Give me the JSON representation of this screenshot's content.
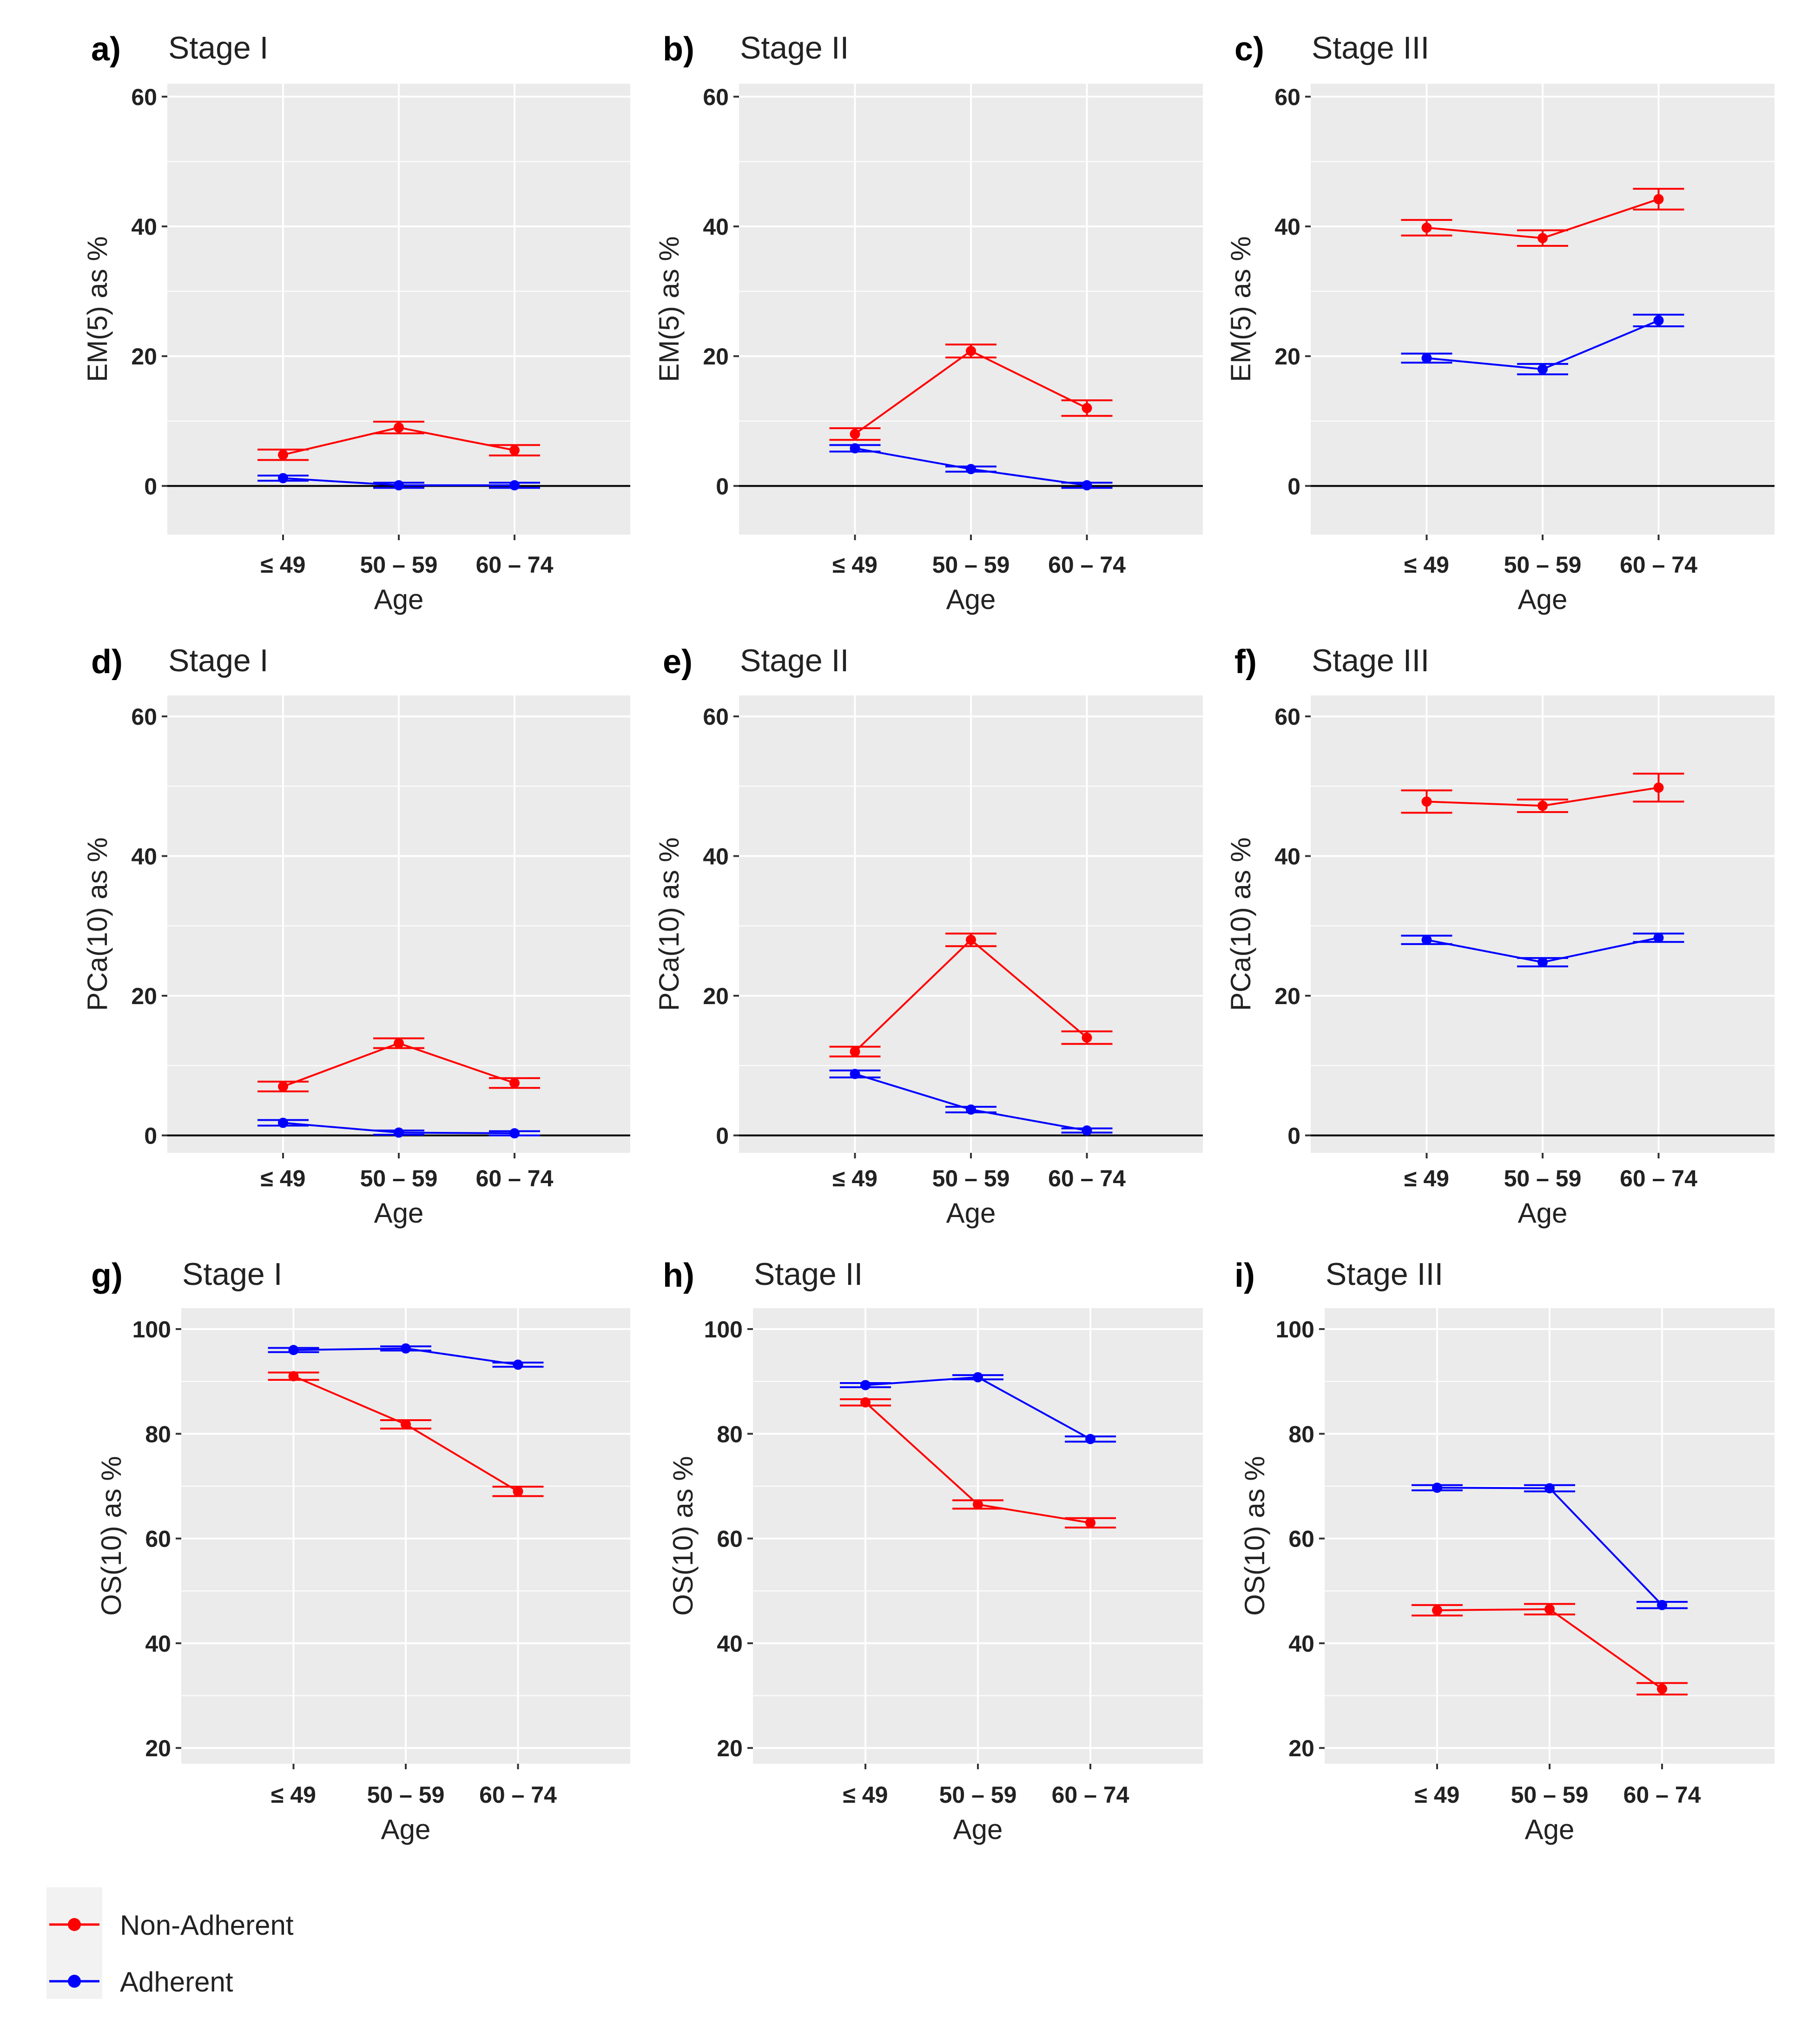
{
  "legend": {
    "items": [
      {
        "label": "Non-Adherent",
        "color": "#ff0000"
      },
      {
        "label": "Adherent",
        "color": "#0000ff"
      }
    ]
  },
  "chart_data": [
    {
      "tag": "a)",
      "title": "Stage I",
      "type": "line",
      "ylabel": "EM(5) as %",
      "xlabel": "Age",
      "categories": [
        "≤ 49",
        "50 – 59",
        "60 – 74"
      ],
      "ylim": [
        -7.5,
        62
      ],
      "yticks": [
        0,
        20,
        40,
        60
      ],
      "zero_line": true,
      "series": [
        {
          "name": "Non-Adherent",
          "color": "#ff0000",
          "values": [
            4.8,
            9,
            5.5
          ],
          "err": [
            0.8,
            0.9,
            0.8
          ]
        },
        {
          "name": "Adherent",
          "color": "#0000ff",
          "values": [
            1.2,
            0.1,
            0.1
          ],
          "err": [
            0.4,
            0.4,
            0.4
          ]
        }
      ]
    },
    {
      "tag": "b)",
      "title": "Stage II",
      "type": "line",
      "ylabel": "EM(5) as %",
      "xlabel": "Age",
      "categories": [
        "≤ 49",
        "50 – 59",
        "60 – 74"
      ],
      "ylim": [
        -7.5,
        62
      ],
      "yticks": [
        0,
        20,
        40,
        60
      ],
      "zero_line": true,
      "series": [
        {
          "name": "Non-Adherent",
          "color": "#ff0000",
          "values": [
            8,
            20.8,
            12
          ],
          "err": [
            0.9,
            1,
            1.2
          ]
        },
        {
          "name": "Adherent",
          "color": "#0000ff",
          "values": [
            5.8,
            2.6,
            0.1
          ],
          "err": [
            0.5,
            0.4,
            0.4
          ]
        }
      ]
    },
    {
      "tag": "c)",
      "title": "Stage III",
      "type": "line",
      "ylabel": "EM(5) as %",
      "xlabel": "Age",
      "categories": [
        "≤ 49",
        "50 – 59",
        "60 – 74"
      ],
      "ylim": [
        -7.5,
        62
      ],
      "yticks": [
        0,
        20,
        40,
        60
      ],
      "zero_line": true,
      "series": [
        {
          "name": "Non-Adherent",
          "color": "#ff0000",
          "values": [
            39.8,
            38.2,
            44.2
          ],
          "err": [
            1.2,
            1.2,
            1.6
          ]
        },
        {
          "name": "Adherent",
          "color": "#0000ff",
          "values": [
            19.7,
            18,
            25.5
          ],
          "err": [
            0.7,
            0.8,
            0.9
          ]
        }
      ]
    },
    {
      "tag": "d)",
      "title": "Stage I",
      "type": "line",
      "ylabel": "PCa(10) as %",
      "xlabel": "Age",
      "categories": [
        "≤ 49",
        "50 – 59",
        "60 – 74"
      ],
      "ylim": [
        -2.5,
        63
      ],
      "yticks": [
        0,
        20,
        40,
        60
      ],
      "zero_line": true,
      "series": [
        {
          "name": "Non-Adherent",
          "color": "#ff0000",
          "values": [
            7,
            13.2,
            7.5
          ],
          "err": [
            0.7,
            0.7,
            0.7
          ]
        },
        {
          "name": "Adherent",
          "color": "#0000ff",
          "values": [
            1.8,
            0.4,
            0.3
          ],
          "err": [
            0.4,
            0.3,
            0.3
          ]
        }
      ]
    },
    {
      "tag": "e)",
      "title": "Stage II",
      "type": "line",
      "ylabel": "PCa(10) as %",
      "xlabel": "Age",
      "categories": [
        "≤ 49",
        "50 – 59",
        "60 – 74"
      ],
      "ylim": [
        -2.5,
        63
      ],
      "yticks": [
        0,
        20,
        40,
        60
      ],
      "zero_line": true,
      "series": [
        {
          "name": "Non-Adherent",
          "color": "#ff0000",
          "values": [
            12,
            28,
            14
          ],
          "err": [
            0.7,
            0.9,
            0.9
          ]
        },
        {
          "name": "Adherent",
          "color": "#0000ff",
          "values": [
            8.8,
            3.7,
            0.7
          ],
          "err": [
            0.5,
            0.4,
            0.3
          ]
        }
      ]
    },
    {
      "tag": "f)",
      "title": "Stage III",
      "type": "line",
      "ylabel": "PCa(10) as %",
      "xlabel": "Age",
      "categories": [
        "≤ 49",
        "50 – 59",
        "60 – 74"
      ],
      "ylim": [
        -2.5,
        63
      ],
      "yticks": [
        0,
        20,
        40,
        60
      ],
      "zero_line": true,
      "series": [
        {
          "name": "Non-Adherent",
          "color": "#ff0000",
          "values": [
            47.8,
            47.2,
            49.8
          ],
          "err": [
            1.6,
            0.9,
            2
          ]
        },
        {
          "name": "Adherent",
          "color": "#0000ff",
          "values": [
            28,
            24.8,
            28.3
          ],
          "err": [
            0.6,
            0.6,
            0.6
          ]
        }
      ]
    },
    {
      "tag": "g)",
      "title": "Stage I",
      "type": "line",
      "ylabel": "OS(10) as %",
      "xlabel": "Age",
      "categories": [
        "≤ 49",
        "50 – 59",
        "60 – 74"
      ],
      "ylim": [
        17,
        104
      ],
      "yticks": [
        20,
        40,
        60,
        80,
        100
      ],
      "zero_line": false,
      "series": [
        {
          "name": "Non-Adherent",
          "color": "#ff0000",
          "values": [
            91,
            81.8,
            69
          ],
          "err": [
            0.7,
            0.8,
            0.9
          ]
        },
        {
          "name": "Adherent",
          "color": "#0000ff",
          "values": [
            96,
            96.3,
            93.2
          ],
          "err": [
            0.4,
            0.4,
            0.4
          ]
        }
      ]
    },
    {
      "tag": "h)",
      "title": "Stage II",
      "type": "line",
      "ylabel": "OS(10) as %",
      "xlabel": "Age",
      "categories": [
        "≤ 49",
        "50 – 59",
        "60 – 74"
      ],
      "ylim": [
        17,
        104
      ],
      "yticks": [
        20,
        40,
        60,
        80,
        100
      ],
      "zero_line": false,
      "series": [
        {
          "name": "Non-Adherent",
          "color": "#ff0000",
          "values": [
            86,
            66.5,
            63
          ],
          "err": [
            0.6,
            0.8,
            0.9
          ]
        },
        {
          "name": "Adherent",
          "color": "#0000ff",
          "values": [
            89.3,
            90.8,
            79
          ],
          "err": [
            0.4,
            0.4,
            0.5
          ]
        }
      ]
    },
    {
      "tag": "i)",
      "title": "Stage III",
      "type": "line",
      "ylabel": "OS(10) as %",
      "xlabel": "Age",
      "categories": [
        "≤ 49",
        "50 – 59",
        "60 – 74"
      ],
      "ylim": [
        17,
        104
      ],
      "yticks": [
        20,
        40,
        60,
        80,
        100
      ],
      "zero_line": false,
      "series": [
        {
          "name": "Non-Adherent",
          "color": "#ff0000",
          "values": [
            46.3,
            46.5,
            31.3
          ],
          "err": [
            1,
            1,
            1.1
          ]
        },
        {
          "name": "Adherent",
          "color": "#0000ff",
          "values": [
            69.7,
            69.6,
            47.3
          ],
          "err": [
            0.5,
            0.6,
            0.6
          ]
        }
      ]
    }
  ]
}
